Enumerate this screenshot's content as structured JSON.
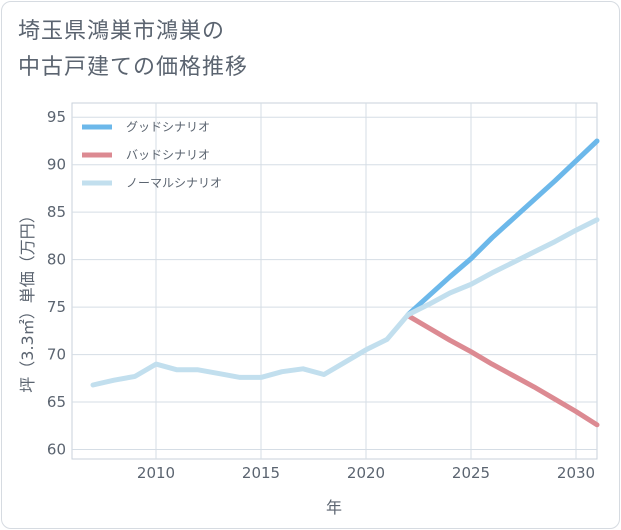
{
  "header": {
    "title_line1": "埼玉県鴻巣市鴻巣の",
    "title_line2": "中古戸建ての価格推移"
  },
  "chart_data": {
    "type": "line",
    "title": "埼玉県鴻巣市鴻巣の中古戸建ての価格推移",
    "xlabel": "年",
    "ylabel": "坪（3.3㎡）単価（万円）",
    "xlim": [
      2006,
      2031
    ],
    "ylim": [
      59,
      96.5
    ],
    "xticks": [
      2010,
      2015,
      2020,
      2025,
      2030
    ],
    "yticks": [
      60,
      65,
      70,
      75,
      80,
      85,
      90,
      95
    ],
    "grid": true,
    "legend_position": "top-left",
    "series": [
      {
        "name": "グッドシナリオ",
        "color": "#6cb8ea",
        "x": [
          2022,
          2023,
          2024,
          2025,
          2026,
          2027,
          2028,
          2029,
          2030,
          2031
        ],
        "y": [
          74.2,
          76.2,
          78.2,
          80.1,
          82.3,
          84.3,
          86.3,
          88.3,
          90.4,
          92.5
        ]
      },
      {
        "name": "バッドシナリオ",
        "color": "#dc8a92",
        "x": [
          2022,
          2023,
          2024,
          2025,
          2026,
          2027,
          2028,
          2029,
          2030,
          2031
        ],
        "y": [
          74.1,
          72.8,
          71.5,
          70.3,
          69.0,
          67.8,
          66.6,
          65.3,
          64.0,
          62.6
        ]
      },
      {
        "name": "ノーマルシナリオ",
        "color": "#c2dfee",
        "x": [
          2007,
          2008,
          2009,
          2010,
          2011,
          2012,
          2013,
          2014,
          2015,
          2016,
          2017,
          2018,
          2019,
          2020,
          2021,
          2022,
          2023,
          2024,
          2025,
          2026,
          2027,
          2028,
          2029,
          2030,
          2031
        ],
        "y": [
          66.8,
          67.3,
          67.7,
          69.0,
          68.4,
          68.4,
          68.0,
          67.6,
          67.6,
          68.2,
          68.5,
          67.9,
          69.2,
          70.5,
          71.6,
          74.2,
          75.3,
          76.5,
          77.4,
          78.6,
          79.7,
          80.8,
          81.9,
          83.1,
          84.2
        ]
      }
    ]
  }
}
